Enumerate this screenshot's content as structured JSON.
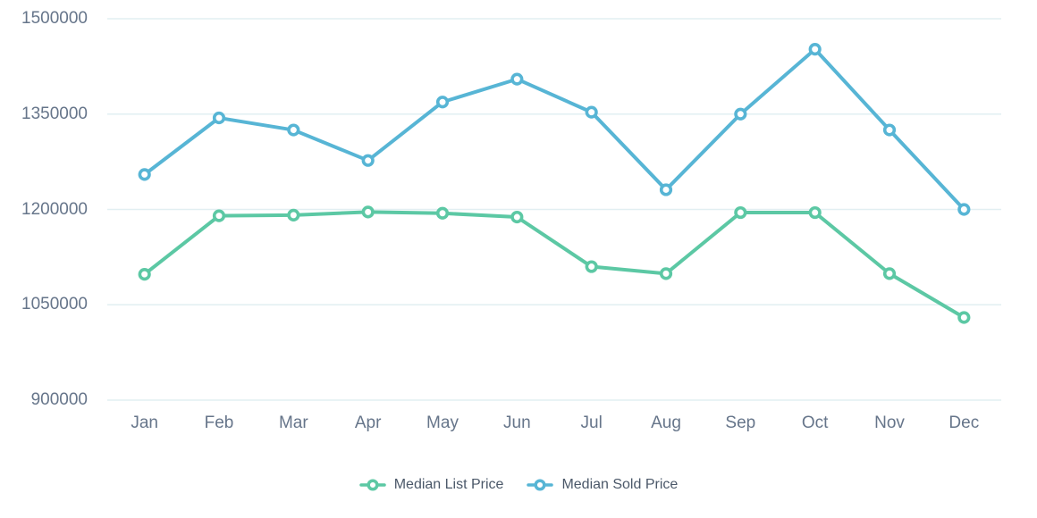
{
  "chart_data": {
    "type": "line",
    "categories": [
      "Jan",
      "Feb",
      "Mar",
      "Apr",
      "May",
      "Jun",
      "Jul",
      "Aug",
      "Sep",
      "Oct",
      "Nov",
      "Dec"
    ],
    "series": [
      {
        "name": "Median List Price",
        "color": "#5cc8a4",
        "values": [
          1098000,
          1190000,
          1191000,
          1196000,
          1194000,
          1188000,
          1110000,
          1099000,
          1195000,
          1195000,
          1099000,
          1030000
        ]
      },
      {
        "name": "Median Sold Price",
        "color": "#57b5d5",
        "values": [
          1255000,
          1344000,
          1325000,
          1277000,
          1369000,
          1405000,
          1353000,
          1231000,
          1350000,
          1452000,
          1325000,
          1200000
        ]
      }
    ],
    "ylim": [
      900000,
      1500000
    ],
    "yticks": [
      900000,
      1050000,
      1200000,
      1350000,
      1500000
    ],
    "ytick_labels": [
      "900000",
      "1050000",
      "1200000",
      "1350000",
      "1500000"
    ],
    "grid": true,
    "gridline_color": "#e2eff2",
    "marker": "open-circle",
    "legend_position": "bottom"
  }
}
